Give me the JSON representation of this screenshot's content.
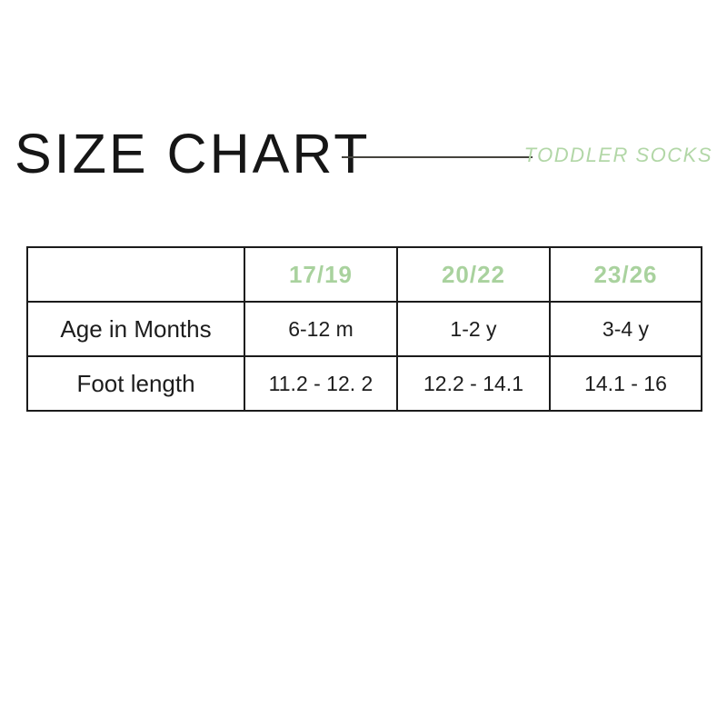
{
  "theme": {
    "background": "#ffffff",
    "accent_green": "#a9d29e",
    "label_green": "#b2d7a7",
    "line_color": "#45443e",
    "text_color": "#161616"
  },
  "chart_data": {
    "type": "table",
    "title": "SIZE CHART",
    "subtitle": "TODDLER SOCKS",
    "columns": [
      "",
      "17/19",
      "20/22",
      "23/26"
    ],
    "rows": [
      [
        "Age in Months",
        "6-12 m",
        "1-2 y",
        "3-4 y"
      ],
      [
        "Foot length",
        "11.2 - 12. 2",
        "12.2 - 14.1",
        "14.1 - 16"
      ]
    ]
  }
}
